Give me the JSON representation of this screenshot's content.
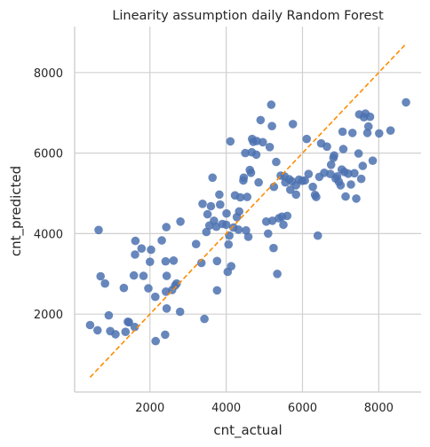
{
  "chart_data": {
    "type": "scatter",
    "title": "Linearity assumption daily Random Forest",
    "xlabel": "cnt_actual",
    "ylabel": "cnt_predicted",
    "xlim": [
      0,
      9000
    ],
    "ylim": [
      0,
      9000
    ],
    "xticks": [
      2000,
      4000,
      6000,
      8000
    ],
    "yticks": [
      2000,
      4000,
      6000,
      8000
    ],
    "grid": true,
    "colors": {
      "points": "#4c72b0",
      "reference_line": "#ff8c00",
      "grid": "#d0d0d0",
      "axis": "#cccccc"
    },
    "reference_line": {
      "x": [
        431,
        8714
      ],
      "y": [
        431,
        8714
      ]
    },
    "points": [
      [
        431,
        1730
      ],
      [
        627,
        1600
      ],
      [
        654,
        4090
      ],
      [
        705,
        2940
      ],
      [
        822,
        2760
      ],
      [
        920,
        1970
      ],
      [
        959,
        1580
      ],
      [
        1096,
        1500
      ],
      [
        1317,
        2650
      ],
      [
        1360,
        1560
      ],
      [
        1422,
        1810
      ],
      [
        1450,
        1800
      ],
      [
        1600,
        1680
      ],
      [
        1580,
        2960
      ],
      [
        1620,
        3820
      ],
      [
        1610,
        3480
      ],
      [
        1780,
        3630
      ],
      [
        1830,
        2950
      ],
      [
        1960,
        2640
      ],
      [
        2000,
        3300
      ],
      [
        2030,
        3600
      ],
      [
        2150,
        1330
      ],
      [
        2140,
        2430
      ],
      [
        2310,
        3830
      ],
      [
        2410,
        3310
      ],
      [
        2400,
        1490
      ],
      [
        2420,
        2560
      ],
      [
        2440,
        2140
      ],
      [
        2440,
        2950
      ],
      [
        2430,
        4160
      ],
      [
        2580,
        2600
      ],
      [
        2620,
        3330
      ],
      [
        2660,
        2710
      ],
      [
        2700,
        2760
      ],
      [
        2790,
        2060
      ],
      [
        2800,
        4300
      ],
      [
        3210,
        3740
      ],
      [
        3350,
        3270
      ],
      [
        3380,
        4740
      ],
      [
        3430,
        1880
      ],
      [
        3480,
        4040
      ],
      [
        3510,
        4480
      ],
      [
        3560,
        4200
      ],
      [
        3600,
        4680
      ],
      [
        3640,
        5390
      ],
      [
        3680,
        4320
      ],
      [
        3740,
        4170
      ],
      [
        3760,
        3320
      ],
      [
        3760,
        2590
      ],
      [
        3820,
        4970
      ],
      [
        3840,
        4720
      ],
      [
        3900,
        4240
      ],
      [
        4000,
        4220
      ],
      [
        4010,
        4500
      ],
      [
        4040,
        3050
      ],
      [
        4060,
        3730
      ],
      [
        4080,
        3950
      ],
      [
        4110,
        6290
      ],
      [
        4130,
        3190
      ],
      [
        4190,
        4150
      ],
      [
        4230,
        4950
      ],
      [
        4280,
        4410
      ],
      [
        4320,
        4100
      ],
      [
        4340,
        4550
      ],
      [
        4370,
        4900
      ],
      [
        4450,
        5320
      ],
      [
        4460,
        5390
      ],
      [
        4500,
        6000
      ],
      [
        4520,
        4080
      ],
      [
        4550,
        4910
      ],
      [
        4580,
        3920
      ],
      [
        4620,
        5580
      ],
      [
        4650,
        5510
      ],
      [
        4670,
        6020
      ],
      [
        4680,
        6350
      ],
      [
        4710,
        6280
      ],
      [
        4790,
        5960
      ],
      [
        4800,
        6300
      ],
      [
        4850,
        5270
      ],
      [
        4900,
        6820
      ],
      [
        4960,
        6270
      ],
      [
        5050,
        4300
      ],
      [
        5100,
        4000
      ],
      [
        5140,
        6150
      ],
      [
        5180,
        7200
      ],
      [
        5200,
        6670
      ],
      [
        5210,
        4320
      ],
      [
        5240,
        3640
      ],
      [
        5250,
        5160
      ],
      [
        5310,
        5780
      ],
      [
        5340,
        3000
      ],
      [
        5380,
        4380
      ],
      [
        5430,
        5440
      ],
      [
        5460,
        4420
      ],
      [
        5500,
        4220
      ],
      [
        5530,
        5420
      ],
      [
        5550,
        5270
      ],
      [
        5600,
        4440
      ],
      [
        5650,
        5350
      ],
      [
        5680,
        5090
      ],
      [
        5720,
        5300
      ],
      [
        5750,
        6720
      ],
      [
        5830,
        4970
      ],
      [
        5830,
        5200
      ],
      [
        5910,
        5340
      ],
      [
        5990,
        5310
      ],
      [
        6060,
        5320
      ],
      [
        6110,
        6350
      ],
      [
        6160,
        5480
      ],
      [
        6270,
        5160
      ],
      [
        6330,
        4960
      ],
      [
        6360,
        4910
      ],
      [
        6400,
        3950
      ],
      [
        6440,
        5410
      ],
      [
        6490,
        6240
      ],
      [
        6570,
        5510
      ],
      [
        6640,
        6160
      ],
      [
        6730,
        5480
      ],
      [
        6750,
        5710
      ],
      [
        6810,
        5880
      ],
      [
        6830,
        5940
      ],
      [
        6870,
        5370
      ],
      [
        6910,
        5420
      ],
      [
        6950,
        5290
      ],
      [
        7000,
        5200
      ],
      [
        7030,
        5590
      ],
      [
        7050,
        6530
      ],
      [
        7070,
        6100
      ],
      [
        7100,
        5530
      ],
      [
        7130,
        4920
      ],
      [
        7200,
        5490
      ],
      [
        7270,
        5220
      ],
      [
        7310,
        6500
      ],
      [
        7360,
        5500
      ],
      [
        7410,
        4870
      ],
      [
        7470,
        5990
      ],
      [
        7490,
        6960
      ],
      [
        7540,
        5360
      ],
      [
        7580,
        5680
      ],
      [
        7610,
        6890
      ],
      [
        7650,
        6980
      ],
      [
        7700,
        6500
      ],
      [
        7730,
        6660
      ],
      [
        7770,
        6900
      ],
      [
        7840,
        5810
      ],
      [
        8010,
        6490
      ],
      [
        8310,
        6560
      ],
      [
        8714,
        7260
      ]
    ]
  }
}
